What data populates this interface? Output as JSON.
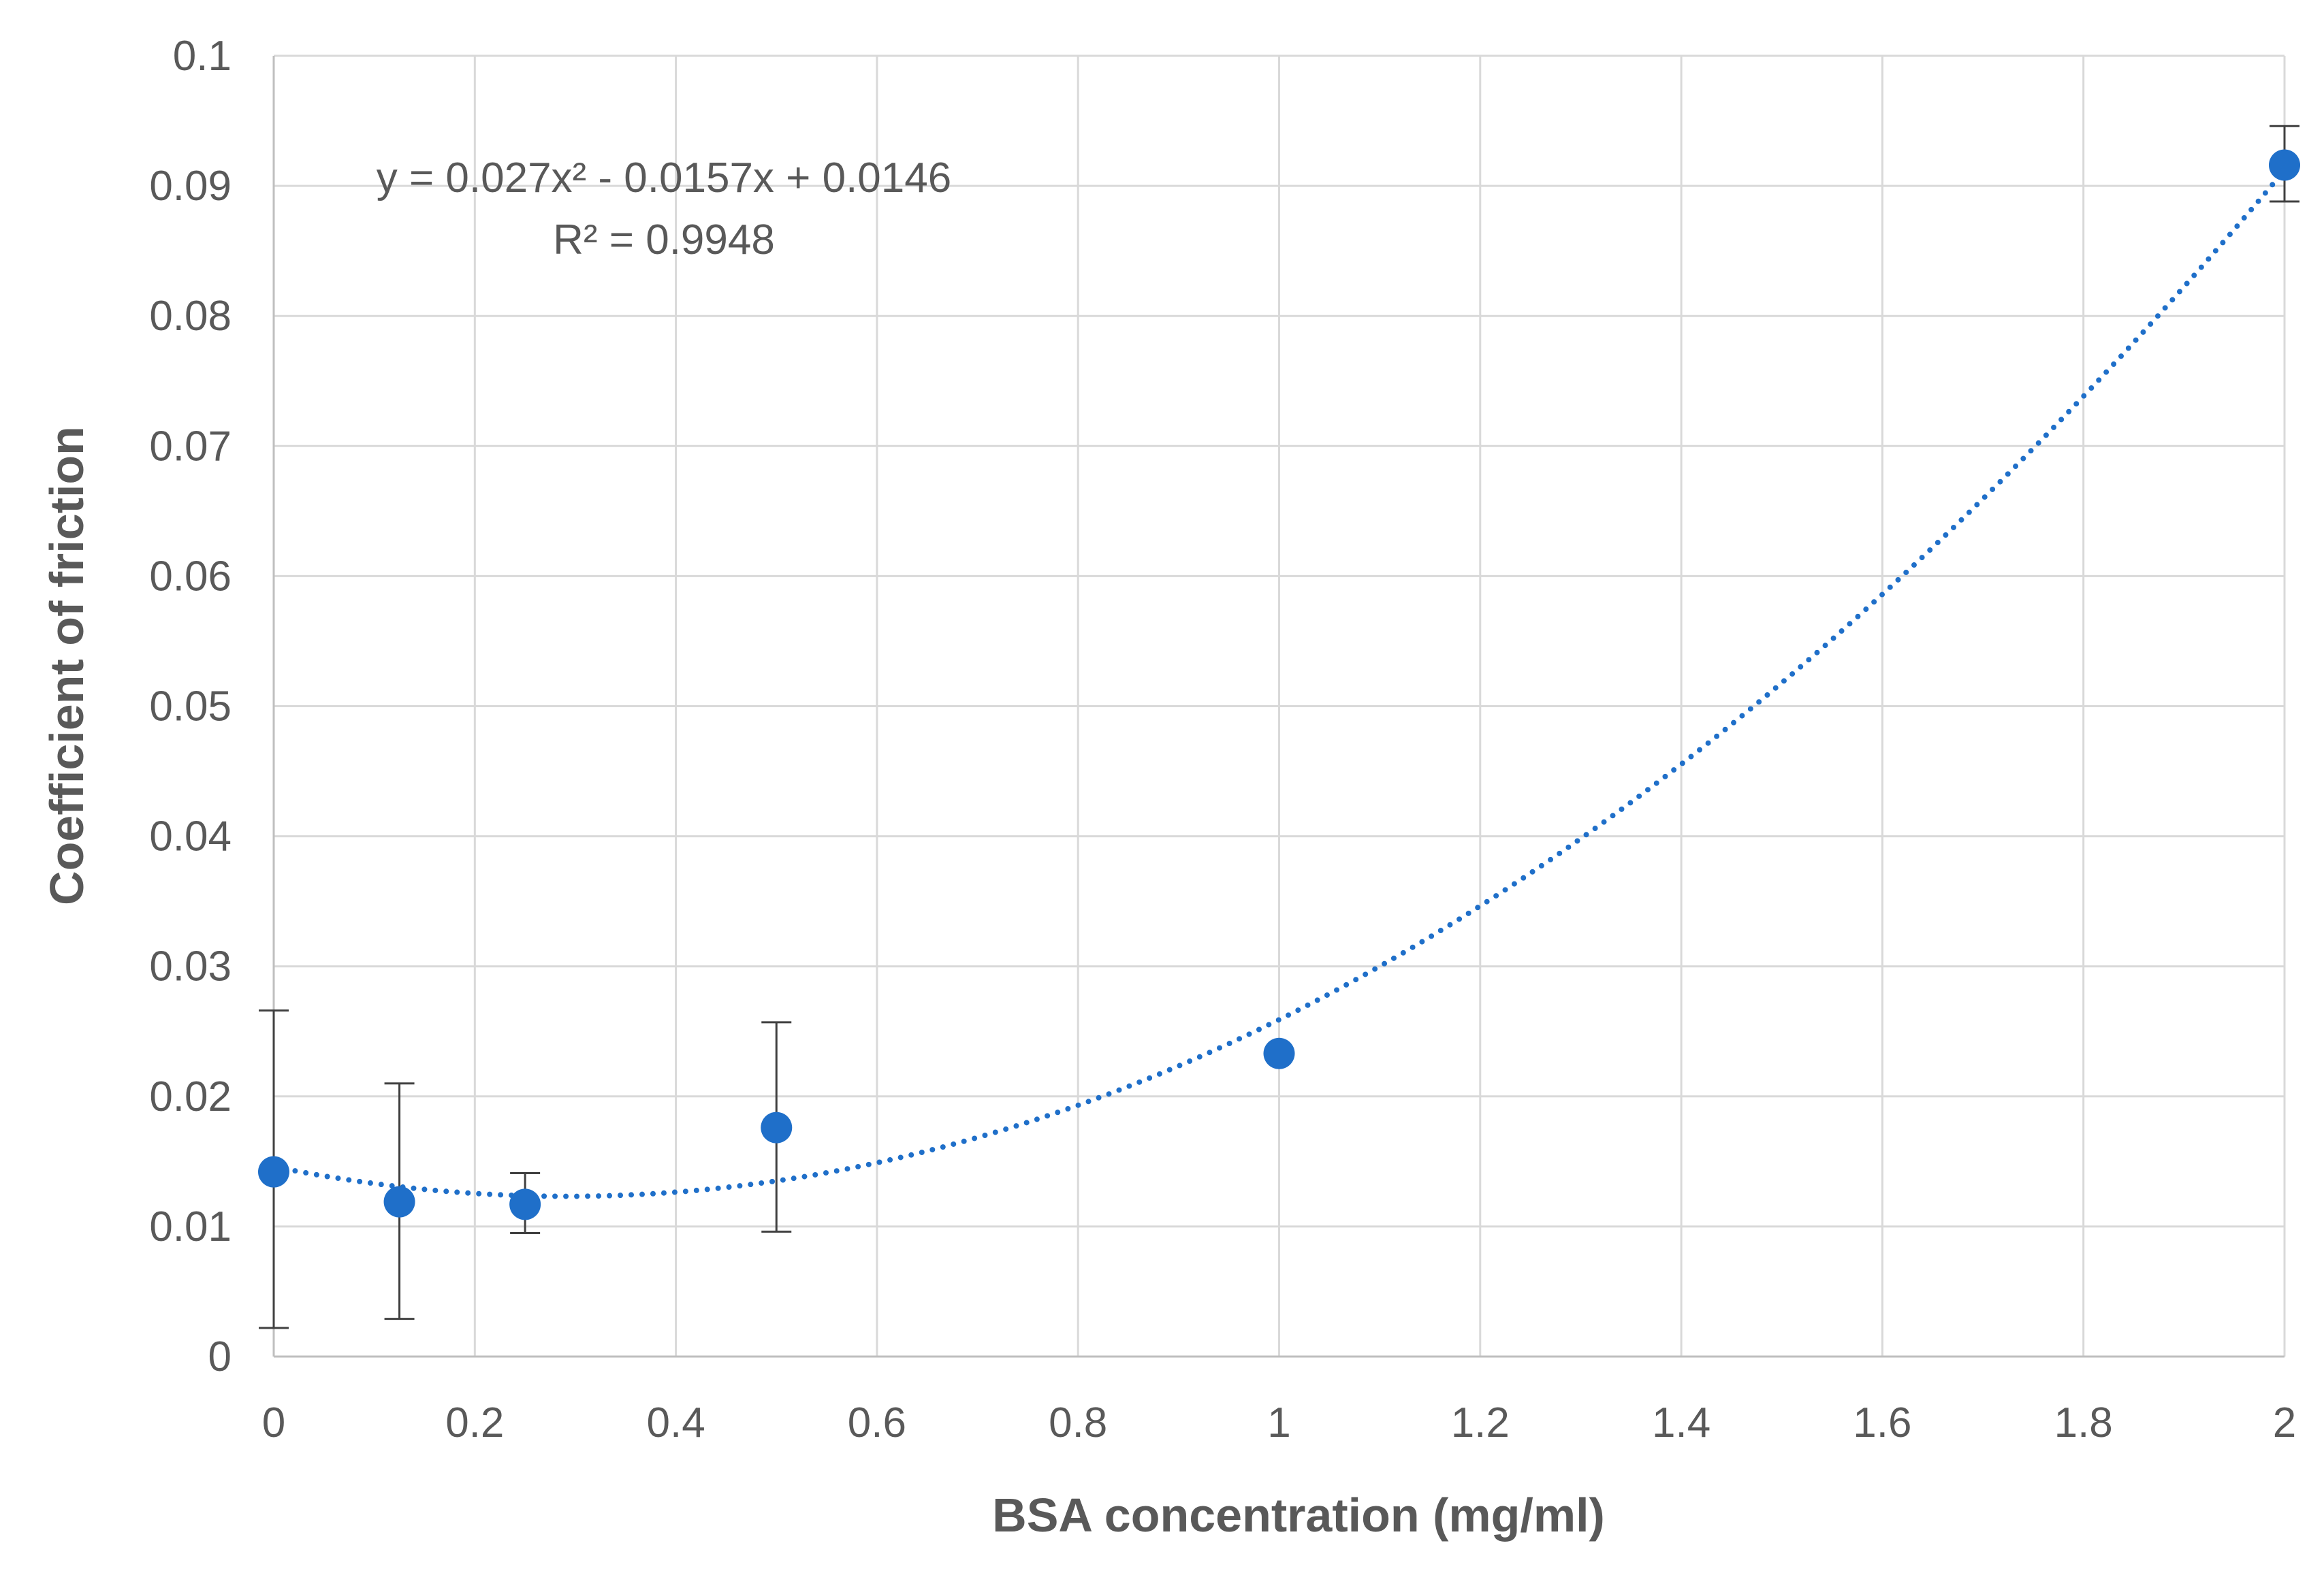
{
  "chart_data": {
    "type": "scatter",
    "title": "",
    "xlabel": "BSA concentration (mg/ml)",
    "ylabel": "Coefficient of friction",
    "xlim": [
      0,
      2
    ],
    "ylim": [
      0,
      0.1
    ],
    "x_ticks": [
      "0",
      "0.2",
      "0.4",
      "0.6",
      "0.8",
      "1",
      "1.2",
      "1.4",
      "1.6",
      "1.8",
      "2"
    ],
    "y_ticks": [
      "0",
      "0.01",
      "0.02",
      "0.03",
      "0.04",
      "0.05",
      "0.06",
      "0.07",
      "0.08",
      "0.09",
      "0.1"
    ],
    "grid": true,
    "legend": "none",
    "series": [
      {
        "color": "#1f6fc9",
        "x": [
          0,
          0.125,
          0.25,
          0.5,
          1,
          2
        ],
        "y": [
          0.0142,
          0.0119,
          0.0117,
          0.0176,
          0.0233,
          0.0916
        ],
        "y_err_low": [
          0.0022,
          0.0029,
          0.0095,
          0.0096,
          0.0233,
          0.0888
        ],
        "y_err_high": [
          0.0266,
          0.021,
          0.0141,
          0.0257,
          0.0233,
          0.0946
        ]
      }
    ],
    "trendline": {
      "type": "polynomial",
      "order": 2,
      "coefficients": [
        0.027,
        -0.0157,
        0.0146
      ],
      "x_range": [
        0,
        2
      ],
      "style": "dotted",
      "color": "#1f6fc9"
    },
    "annotations": {
      "equation": "y = 0.027x² - 0.0157x + 0.0146",
      "r_squared": "R² = 0.9948"
    }
  }
}
